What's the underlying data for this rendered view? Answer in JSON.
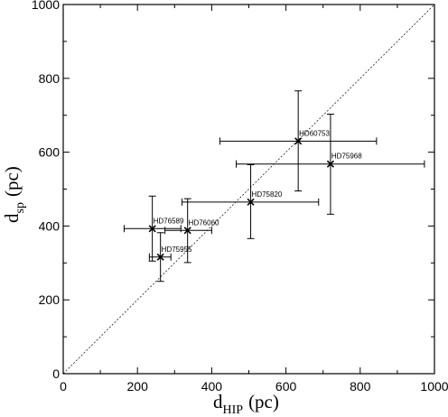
{
  "chart_data": {
    "type": "scatter",
    "title": "",
    "xlabel": {
      "main": "d",
      "sub": "HIP",
      "unit": "(pc)"
    },
    "ylabel": {
      "main": "d",
      "sub": "sp",
      "unit": "(pc)"
    },
    "xlim": [
      0,
      1000
    ],
    "ylim": [
      0,
      1000
    ],
    "xticks": [
      0,
      200,
      400,
      600,
      800,
      1000
    ],
    "yticks": [
      0,
      200,
      400,
      600,
      800,
      1000
    ],
    "grid": false,
    "reference_line": {
      "style": "dashed",
      "from": [
        0,
        0
      ],
      "to": [
        1000,
        1000
      ]
    },
    "points": [
      {
        "label": "HD60753",
        "x": 633,
        "y": 630,
        "x_err": [
          422,
          844
        ],
        "y_err": [
          495,
          766
        ]
      },
      {
        "label": "HD75968",
        "x": 720,
        "y": 568,
        "x_err": [
          466,
          973
        ],
        "y_err": [
          432,
          703
        ]
      },
      {
        "label": "HD75820",
        "x": 505,
        "y": 465,
        "x_err": [
          320,
          688
        ],
        "y_err": [
          366,
          566
        ]
      },
      {
        "label": "HD76589",
        "x": 240,
        "y": 393,
        "x_err": [
          164,
          317
        ],
        "y_err": [
          305,
          481
        ]
      },
      {
        "label": "HD76060",
        "x": 335,
        "y": 388,
        "x_err": [
          274,
          400
        ],
        "y_err": [
          301,
          474
        ]
      },
      {
        "label": "HD75955",
        "x": 262,
        "y": 316,
        "x_err": [
          232,
          290
        ],
        "y_err": [
          250,
          382
        ]
      }
    ]
  }
}
